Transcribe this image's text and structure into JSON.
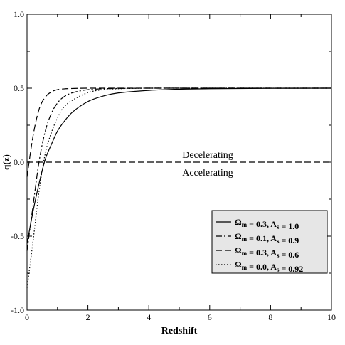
{
  "chart_data": {
    "type": "line",
    "xlabel": "Redshift",
    "ylabel": "q(z)",
    "xlim": [
      0,
      10
    ],
    "ylim": [
      -1.0,
      1.0
    ],
    "xticks": [
      0,
      2,
      4,
      6,
      8,
      10
    ],
    "xtick_labels": [
      "0",
      "2",
      "4",
      "6",
      "8",
      "10"
    ],
    "yticks": [
      -1.0,
      -0.5,
      0.0,
      0.5,
      1.0
    ],
    "ytick_labels": [
      "-1.0",
      "-0.5",
      "0.0",
      "0.5",
      "1.0"
    ],
    "grid": false,
    "legend_position": "bottom-right",
    "reference_line": {
      "y": 0.0,
      "style": "dashed"
    },
    "annotations": {
      "above": "Decelerating",
      "below": "Accelerating"
    },
    "series": [
      {
        "label_omega": "0.3",
        "label_A": "1.0",
        "style": "solid",
        "x": [
          0,
          0.2,
          0.4,
          0.6,
          0.8,
          1.0,
          1.2,
          1.5,
          2.0,
          2.5,
          3.0,
          4.0,
          5.0,
          6.0,
          8.0,
          10.0
        ],
        "y": [
          -0.55,
          -0.33,
          -0.14,
          0.02,
          0.12,
          0.21,
          0.27,
          0.34,
          0.41,
          0.447,
          0.468,
          0.485,
          0.493,
          0.496,
          0.499,
          0.5
        ]
      },
      {
        "label_omega": "0.1",
        "label_A": "0.9",
        "style": "dashdot",
        "x": [
          0,
          0.2,
          0.4,
          0.6,
          0.8,
          1.0,
          1.2,
          1.5,
          2.0,
          2.5,
          3.0,
          4.0,
          6.0,
          10.0
        ],
        "y": [
          -0.6,
          -0.29,
          0.01,
          0.21,
          0.33,
          0.4,
          0.44,
          0.47,
          0.49,
          0.496,
          0.498,
          0.5,
          0.5,
          0.5
        ]
      },
      {
        "label_omega": "0.3",
        "label_A": "0.6",
        "style": "dashed",
        "x": [
          0,
          0.2,
          0.4,
          0.6,
          0.8,
          1.0,
          1.2,
          1.5,
          2.0,
          3.0,
          4.0,
          10.0
        ],
        "y": [
          -0.1,
          0.18,
          0.36,
          0.44,
          0.475,
          0.49,
          0.495,
          0.498,
          0.5,
          0.5,
          0.5,
          0.5
        ]
      },
      {
        "label_omega": "0.0",
        "label_A": "0.92",
        "style": "dotted",
        "x": [
          0,
          0.2,
          0.4,
          0.6,
          0.8,
          1.0,
          1.2,
          1.5,
          2.0,
          2.5,
          3.0,
          4.0,
          6.0,
          10.0
        ],
        "y": [
          -0.85,
          -0.53,
          -0.19,
          0.06,
          0.2,
          0.3,
          0.37,
          0.42,
          0.47,
          0.49,
          0.496,
          0.5,
          0.5,
          0.5
        ]
      }
    ]
  }
}
